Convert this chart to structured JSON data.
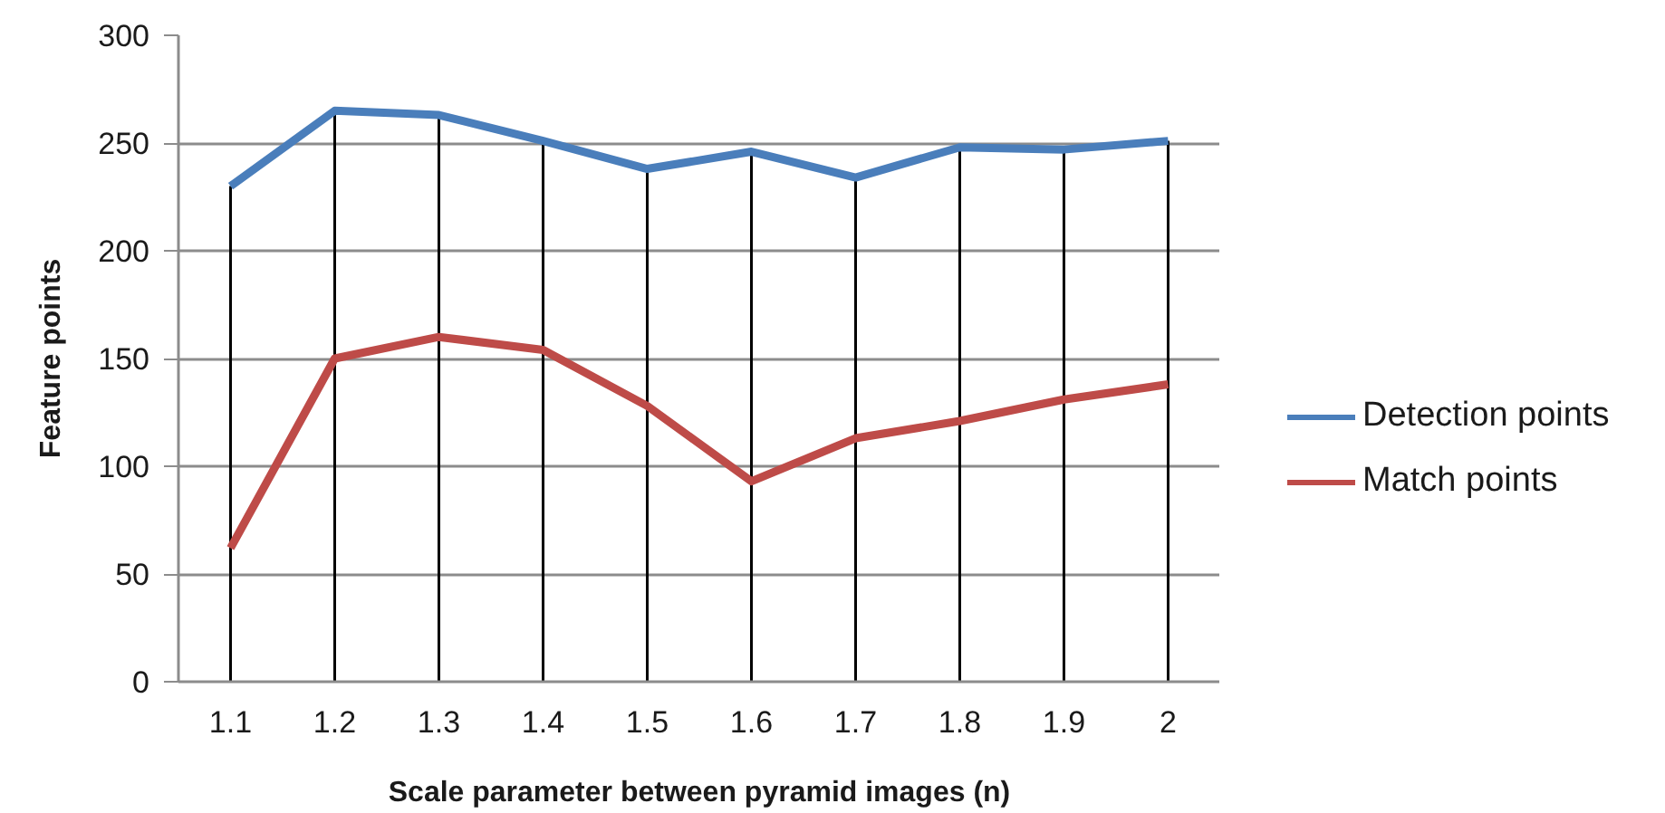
{
  "chart_data": {
    "type": "line",
    "xlabel": "Scale parameter between pyramid images (n)",
    "ylabel": "Feature points",
    "categories": [
      "1.1",
      "1.2",
      "1.3",
      "1.4",
      "1.5",
      "1.6",
      "1.7",
      "1.8",
      "1.9",
      "2"
    ],
    "series": [
      {
        "name": "Detection points",
        "color": "#4a7ebb",
        "values": [
          230,
          265,
          263,
          251,
          238,
          246,
          234,
          248,
          247,
          251
        ]
      },
      {
        "name": "Match points",
        "color": "#be4b48",
        "values": [
          62,
          150,
          160,
          154,
          128,
          93,
          113,
          121,
          131,
          138
        ]
      }
    ],
    "ylim": [
      0,
      300
    ],
    "yticks": [
      0,
      50,
      100,
      150,
      200,
      250,
      300
    ],
    "grid": true,
    "legend": "right",
    "marker": "none",
    "line_style": "solid"
  }
}
